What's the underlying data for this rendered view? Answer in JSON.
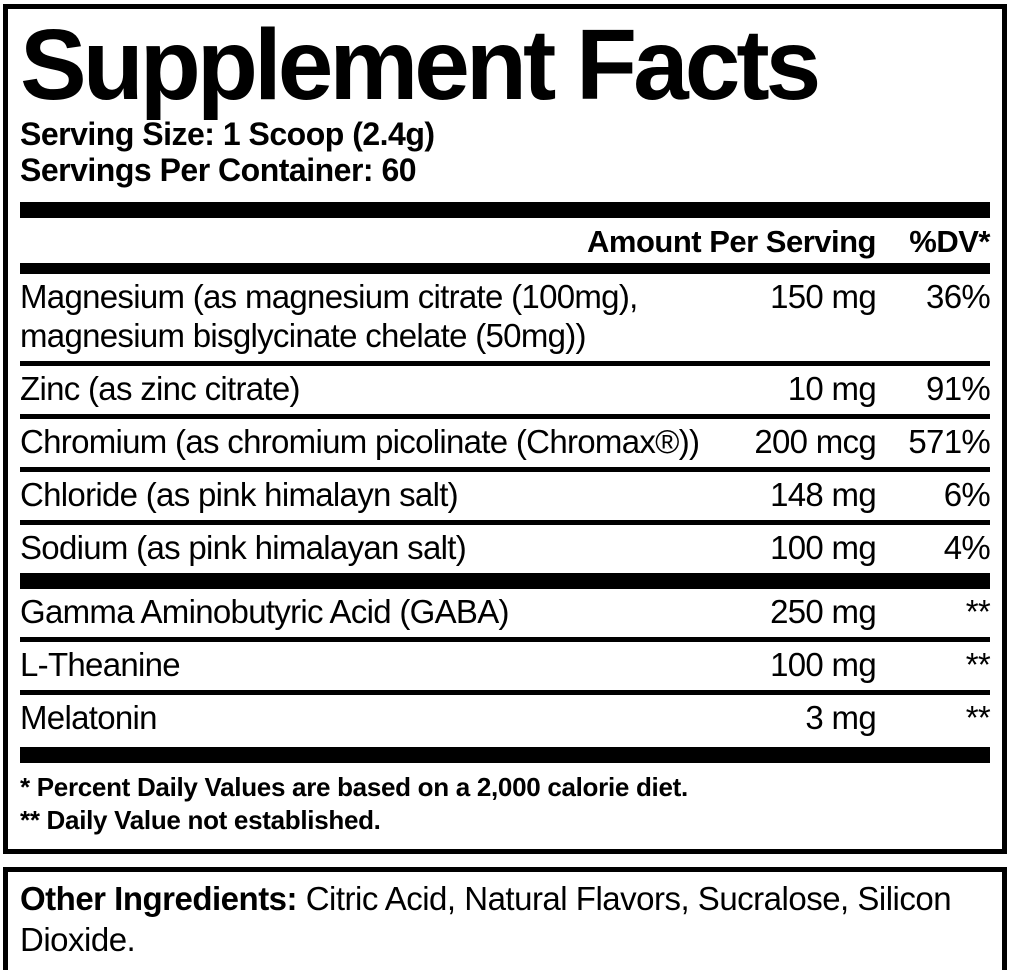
{
  "colors": {
    "ink": "#000000",
    "paper": "#ffffff"
  },
  "facts": {
    "title": "Supplement Facts",
    "serving_size": "Serving Size: 1 Scoop (2.4g)",
    "servings_per_container": "Servings Per Container: 60",
    "header": {
      "amount": "Amount Per Serving",
      "dv": "%DV*"
    },
    "rows_top": [
      {
        "name": "Magnesium (as magnesium citrate (100mg), magnesium bisglycinate chelate (50mg))",
        "amount": "150 mg",
        "dv": "36%"
      },
      {
        "name": "Zinc (as zinc citrate)",
        "amount": "10 mg",
        "dv": "91%"
      },
      {
        "name": "Chromium (as chromium picolinate (Chromax®))",
        "amount": "200 mcg",
        "dv": "571%"
      },
      {
        "name": "Chloride (as pink himalayn salt)",
        "amount": "148 mg",
        "dv": "6%"
      },
      {
        "name": "Sodium (as pink himalayan salt)",
        "amount": "100 mg",
        "dv": "4%"
      }
    ],
    "rows_bottom": [
      {
        "name": "Gamma Aminobutyric Acid (GABA)",
        "amount": "250 mg",
        "dv": "**"
      },
      {
        "name": "L-Theanine",
        "amount": "100 mg",
        "dv": "**"
      },
      {
        "name": "Melatonin",
        "amount": "3 mg",
        "dv": "**"
      }
    ],
    "footnotes": [
      "* Percent Daily Values are based on a 2,000 calorie diet.",
      "** Daily Value not established."
    ]
  },
  "other_ingredients": {
    "label": "Other Ingredients:",
    "text": " Citric Acid, Natural Flavors, Sucralose, Silicon Dioxide."
  }
}
